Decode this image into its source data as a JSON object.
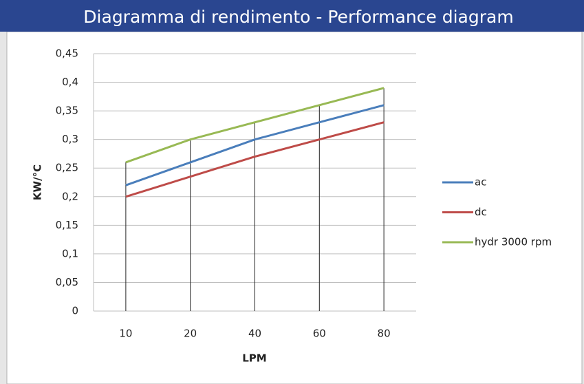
{
  "chart_data": {
    "type": "line",
    "title": "Diagramma di rendimento - Performance diagram",
    "xlabel": "LPM",
    "ylabel": "KW/°C",
    "categories": [
      "10",
      "20",
      "40",
      "60",
      "80"
    ],
    "series": [
      {
        "name": "ac",
        "color": "#4a7ebb",
        "values": [
          0.22,
          0.26,
          0.3,
          0.33,
          0.36
        ]
      },
      {
        "name": "dc",
        "color": "#be4b48",
        "values": [
          0.2,
          0.235,
          0.27,
          0.3,
          0.33
        ]
      },
      {
        "name": "hydr 3000 rpm",
        "color": "#98b954",
        "values": [
          0.26,
          0.3,
          0.33,
          0.36,
          0.39
        ]
      }
    ],
    "ylim": [
      0,
      0.45
    ],
    "yticks": [
      0,
      {
        "value": 0.05,
        "label": "0,05"
      },
      {
        "value": 0.1,
        "label": "0,1"
      },
      {
        "value": 0.15,
        "label": "0,15"
      },
      {
        "value": 0.2,
        "label": "0,2"
      },
      {
        "value": 0.25,
        "label": "0,25"
      },
      {
        "value": 0.3,
        "label": "0,3"
      },
      {
        "value": 0.35,
        "label": "0,35"
      },
      {
        "value": 0.4,
        "label": "0,4"
      },
      {
        "value": 0.45,
        "label": "0,45"
      }
    ],
    "grid": true,
    "legend": "right"
  }
}
